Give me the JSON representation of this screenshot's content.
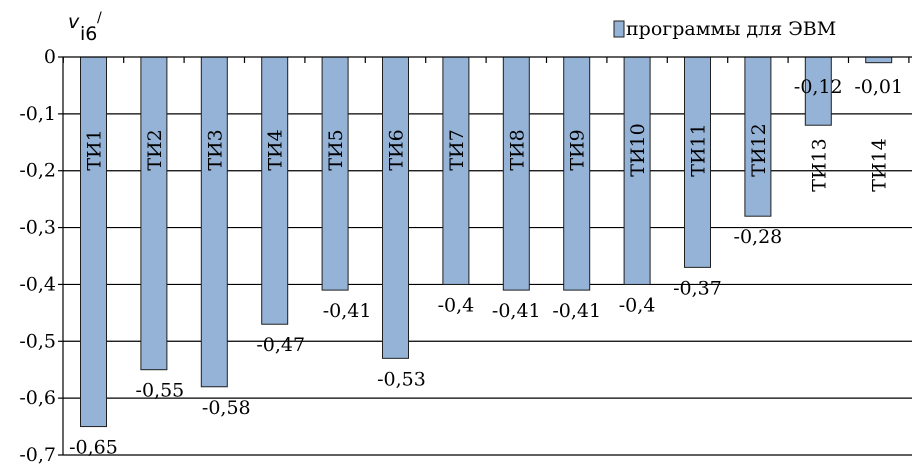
{
  "chart_data": {
    "type": "bar",
    "categories": [
      "ТИ1",
      "ТИ2",
      "ТИ3",
      "ТИ4",
      "ТИ5",
      "ТИ6",
      "ТИ7",
      "ТИ8",
      "ТИ9",
      "ТИ10",
      "ТИ11",
      "ТИ12",
      "ТИ13",
      "ТИ14"
    ],
    "series": [
      {
        "name": "программы для ЭВМ",
        "values": [
          -0.65,
          -0.55,
          -0.58,
          -0.47,
          -0.41,
          -0.53,
          -0.4,
          -0.41,
          -0.41,
          -0.4,
          -0.37,
          -0.28,
          -0.12,
          -0.01
        ],
        "value_labels": [
          "-0,65",
          "-0,55",
          "-0,58",
          "-0,47",
          "-0,41",
          "-0,53",
          "-0,4",
          "-0,41",
          "-0,41",
          "-0,4",
          "-0,37",
          "-0,28",
          "-0,12",
          "-0,01"
        ]
      }
    ],
    "ylim": [
      -0.7,
      0
    ],
    "yticks": [
      0,
      -0.1,
      -0.2,
      -0.3,
      -0.4,
      -0.5,
      -0.6,
      -0.7
    ],
    "ytick_labels": [
      "0",
      "-0,1",
      "-0,2",
      "-0,3",
      "-0,4",
      "-0,5",
      "-0,6",
      "-0,7"
    ],
    "ylabel": {
      "main": "v",
      "sub": "i6",
      "prime": "/"
    },
    "xlabel": "",
    "title": "",
    "grid": true,
    "legend_position": "top-right",
    "bar_color": "#95b3d7",
    "bar_edge_color": "#1f1f1f"
  }
}
